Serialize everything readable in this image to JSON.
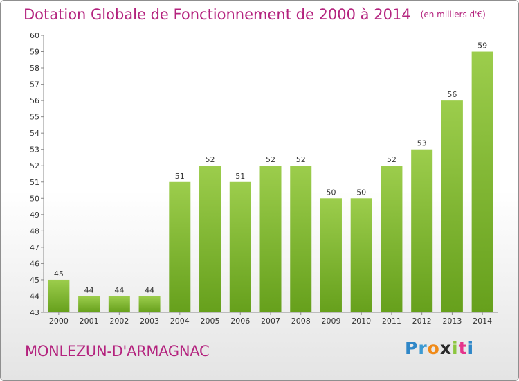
{
  "chart_data": {
    "type": "bar",
    "title": "Dotation Globale de Fonctionnement de 2000 à 2014",
    "unit_label": "(en milliers d'€)",
    "categories": [
      "2000",
      "2001",
      "2002",
      "2003",
      "2004",
      "2005",
      "2006",
      "2007",
      "2008",
      "2009",
      "2010",
      "2011",
      "2012",
      "2013",
      "2014"
    ],
    "values": [
      45,
      44,
      44,
      44,
      51,
      52,
      51,
      52,
      52,
      50,
      50,
      52,
      53,
      56,
      59
    ],
    "ylim": [
      43,
      60
    ],
    "yticks": [
      43,
      44,
      45,
      46,
      47,
      48,
      49,
      50,
      51,
      52,
      53,
      54,
      55,
      56,
      57,
      58,
      59,
      60
    ],
    "xlabel": "",
    "ylabel": "",
    "grid": false
  },
  "commune": "MONLEZUN-D'ARMAGNAC",
  "logo": {
    "text": "Proxiti"
  },
  "colors": {
    "bar_light": "#9ccd4c",
    "bar_dark": "#6aa51f",
    "title": "#b4237e"
  }
}
